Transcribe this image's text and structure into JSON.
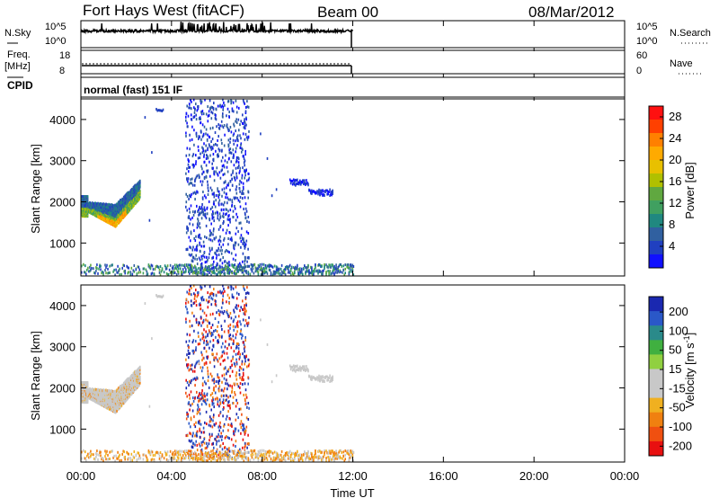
{
  "header": {
    "station": "Fort Hays West (fitACF)",
    "beam": "Beam 00",
    "date": "08/Mar/2012"
  },
  "top_panels": {
    "nsky_label": "N.Sky",
    "nsky_ticks": [
      "10^5",
      "10^0"
    ],
    "freq_label": "Freq.",
    "freq_unit": "[MHz]",
    "freq_ticks": [
      "18",
      "8"
    ],
    "cpid_label": "CPID",
    "cpid_value": "normal (fast) 151 IF",
    "nsearch_label": "N.Search",
    "nsearch_ticks": [
      "10^5",
      "10^0"
    ],
    "nave_label": "Nave",
    "nave_ticks": [
      "60",
      "0"
    ]
  },
  "time_axis": {
    "label": "Time UT",
    "ticks": [
      "00:00",
      "04:00",
      "08:00",
      "12:00",
      "16:00",
      "20:00",
      "00:00"
    ]
  },
  "power_colorbar": {
    "title": "Power [dB]",
    "ticks": [
      "28",
      "24",
      "20",
      "16",
      "12",
      "8",
      "4"
    ],
    "colors": [
      "#ff1010",
      "#ff4000",
      "#ff8000",
      "#ffaa00",
      "#e8c000",
      "#b0c000",
      "#60a840",
      "#40a060",
      "#208880",
      "#3060a0",
      "#2040c0",
      "#1010ff"
    ]
  },
  "velocity_colorbar": {
    "title": "Velocity [m s-1]",
    "ticks": [
      "200",
      "100",
      "50",
      "15",
      "-15",
      "-50",
      "-100",
      "-200"
    ],
    "colors": [
      "#1a28b0",
      "#2a58c8",
      "#2a8a8a",
      "#40b040",
      "#90d040",
      "#c8c8c8",
      "#c8c8c8",
      "#f0b020",
      "#f08010",
      "#f05010",
      "#e81010"
    ]
  },
  "chart_data": [
    {
      "type": "heatmap",
      "title": "Power",
      "xlabel": "Time UT",
      "ylabel": "Slant Range [km]",
      "xlim": [
        0,
        24
      ],
      "ylim": [
        200,
        4500
      ],
      "yticks": [
        1000,
        2000,
        3000,
        4000
      ],
      "colorbar_label": "Power [dB]",
      "features": [
        {
          "desc": "dense echo band",
          "t": [
            0.0,
            2.6
          ],
          "range_km": [
            1400,
            2500
          ],
          "peak_db": 24
        },
        {
          "desc": "scattered echoes",
          "t": [
            4.6,
            7.4
          ],
          "range_km": [
            300,
            4500
          ],
          "peak_db": 8
        },
        {
          "desc": "echo band",
          "t": [
            9.2,
            11.1
          ],
          "range_km": [
            2200,
            2450
          ],
          "peak_db": 8
        },
        {
          "desc": "near-range ground scatter",
          "t": [
            0.0,
            12.0
          ],
          "range_km": [
            200,
            500
          ],
          "peak_db": 12
        }
      ]
    },
    {
      "type": "heatmap",
      "title": "Velocity",
      "xlabel": "Time UT",
      "ylabel": "Slant Range [km]",
      "xlim": [
        0,
        24
      ],
      "ylim": [
        200,
        4500
      ],
      "yticks": [
        1000,
        2000,
        3000,
        4000
      ],
      "colorbar_label": "Velocity [m s-1]",
      "features": [
        {
          "desc": "ground scatter (grey)",
          "t": [
            0.0,
            2.6
          ],
          "range_km": [
            1400,
            2500
          ],
          "velocity": 0
        },
        {
          "desc": "scattered red/blue echoes",
          "t": [
            4.6,
            7.4
          ],
          "range_km": [
            300,
            4500
          ],
          "velocity_range": [
            -200,
            200
          ]
        },
        {
          "desc": "near-range orange echoes",
          "t": [
            0.0,
            12.0
          ],
          "range_km": [
            200,
            500
          ],
          "velocity": -60
        }
      ]
    }
  ]
}
